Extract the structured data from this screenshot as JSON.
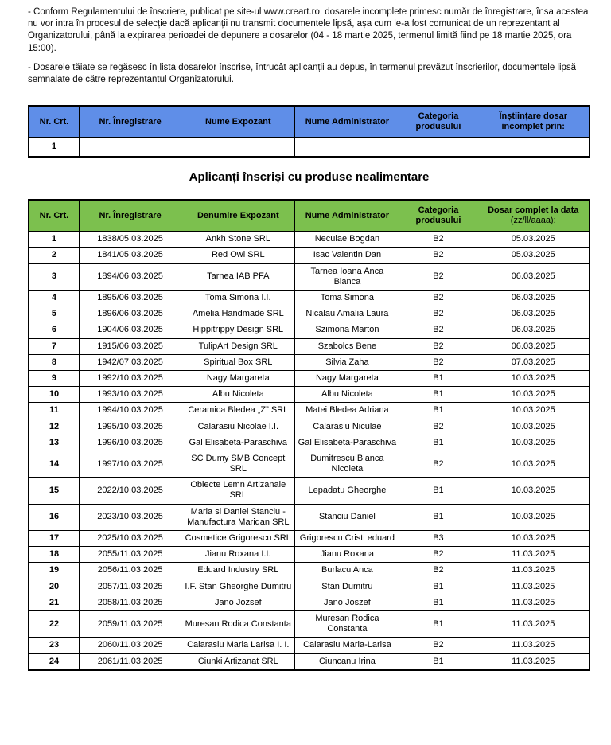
{
  "intro": {
    "p1": "- Conform Regulamentului de înscriere, publicat pe site-ul www.creart.ro, dosarele incomplete primesc număr de înregistrare, însa acestea nu vor intra în procesul de selecție dacă aplicanții nu transmit documentele lipsă, așa cum le-a fost comunicat de un reprezentant al Organizatorului, până la expirarea perioadei de depunere a dosarelor (04 - 18 martie 2025, termenul limită fiind pe 18 martie 2025, ora 15:00).",
    "p2": "- Dosarele tăiate se regăsesc în lista dosarelor înscrise, întrucât aplicanții au depus, în termenul prevăzut înscrierilor, documentele lipsă semnalate de către reprezentantul Organizatorului."
  },
  "heading": "Aplicanți înscriși cu produse nealimentare",
  "colors": {
    "table1_header_bg": "#5f8ee8",
    "table2_header_bg": "#7cc04e"
  },
  "table1": {
    "headers": [
      "Nr. Crt.",
      "Nr. Înregistrare",
      "Nume Expozant",
      "Nume Administrator",
      "Categoria produsului",
      "Înștiințare dosar incomplet prin:"
    ],
    "header_subs": {},
    "rows": [
      [
        "1",
        "",
        "",
        "",
        "",
        ""
      ]
    ]
  },
  "table2": {
    "headers": [
      "Nr. Crt.",
      "Nr. Înregistrare",
      "Denumire Expozant",
      "Nume Administrator",
      "Categoria produsului",
      "Dosar complet la data"
    ],
    "header_subs": {
      "5": "(zz/ll/aaaa):"
    },
    "rows": [
      [
        "1",
        "1838/05.03.2025",
        "Ankh Stone SRL",
        "Neculae Bogdan",
        "B2",
        "05.03.2025"
      ],
      [
        "2",
        "1841/05.03.2025",
        "Red Owl SRL",
        "Isac Valentin Dan",
        "B2",
        "05.03.2025"
      ],
      [
        "3",
        "1894/06.03.2025",
        "Tarnea IAB PFA",
        "Tarnea Ioana Anca Bianca",
        "B2",
        "06.03.2025"
      ],
      [
        "4",
        "1895/06.03.2025",
        "Toma Simona I.I.",
        "Toma Simona",
        "B2",
        "06.03.2025"
      ],
      [
        "5",
        "1896/06.03.2025",
        "Amelia Handmade SRL",
        "Nicalau Amalia Laura",
        "B2",
        "06.03.2025"
      ],
      [
        "6",
        "1904/06.03.2025",
        "Hippitrippy Design SRL",
        "Szimona Marton",
        "B2",
        "06.03.2025"
      ],
      [
        "7",
        "1915/06.03.2025",
        "TulipArt Design SRL",
        "Szabolcs Bene",
        "B2",
        "06.03.2025"
      ],
      [
        "8",
        "1942/07.03.2025",
        "Spiritual Box SRL",
        "Silvia Zaha",
        "B2",
        "07.03.2025"
      ],
      [
        "9",
        "1992/10.03.2025",
        "Nagy Margareta",
        "Nagy Margareta",
        "B1",
        "10.03.2025"
      ],
      [
        "10",
        "1993/10.03.2025",
        "Albu Nicoleta",
        "Albu Nicoleta",
        "B1",
        "10.03.2025"
      ],
      [
        "11",
        "1994/10.03.2025",
        "Ceramica Bledea „Z” SRL",
        "Matei Bledea Adriana",
        "B1",
        "10.03.2025"
      ],
      [
        "12",
        "1995/10.03.2025",
        "Calarasiu Nicolae I.I.",
        "Calarasiu Niculae",
        "B2",
        "10.03.2025"
      ],
      [
        "13",
        "1996/10.03.2025",
        "Gal Elisabeta-Paraschiva",
        "Gal Elisabeta-Paraschiva",
        "B1",
        "10.03.2025"
      ],
      [
        "14",
        "1997/10.03.2025",
        "SC Dumy SMB Concept SRL",
        "Dumitrescu Bianca Nicoleta",
        "B2",
        "10.03.2025"
      ],
      [
        "15",
        "2022/10.03.2025",
        "Obiecte Lemn Artizanale SRL",
        "Lepadatu Gheorghe",
        "B1",
        "10.03.2025"
      ],
      [
        "16",
        "2023/10.03.2025",
        "Maria si Daniel Stanciu - Manufactura Maridan SRL",
        "Stanciu Daniel",
        "B1",
        "10.03.2025"
      ],
      [
        "17",
        "2025/10.03.2025",
        "Cosmetice Grigorescu SRL",
        "Grigorescu Cristi eduard",
        "B3",
        "10.03.2025"
      ],
      [
        "18",
        "2055/11.03.2025",
        "Jianu Roxana I.I.",
        "Jianu Roxana",
        "B2",
        "11.03.2025"
      ],
      [
        "19",
        "2056/11.03.2025",
        "Eduard Industry SRL",
        "Burlacu Anca",
        "B2",
        "11.03.2025"
      ],
      [
        "20",
        "2057/11.03.2025",
        "I.F. Stan Gheorghe Dumitru",
        "Stan Dumitru",
        "B1",
        "11.03.2025"
      ],
      [
        "21",
        "2058/11.03.2025",
        "Jano Jozsef",
        "Jano Joszef",
        "B1",
        "11.03.2025"
      ],
      [
        "22",
        "2059/11.03.2025",
        "Muresan Rodica Constanta",
        "Muresan Rodica Constanta",
        "B1",
        "11.03.2025"
      ],
      [
        "23",
        "2060/11.03.2025",
        "Calarasiu Maria Larisa I. I.",
        "Calarasiu Maria-Larisa",
        "B2",
        "11.03.2025"
      ],
      [
        "24",
        "2061/11.03.2025",
        "Ciunki Artizanat SRL",
        "Ciuncanu Irina",
        "B1",
        "11.03.2025"
      ]
    ]
  }
}
